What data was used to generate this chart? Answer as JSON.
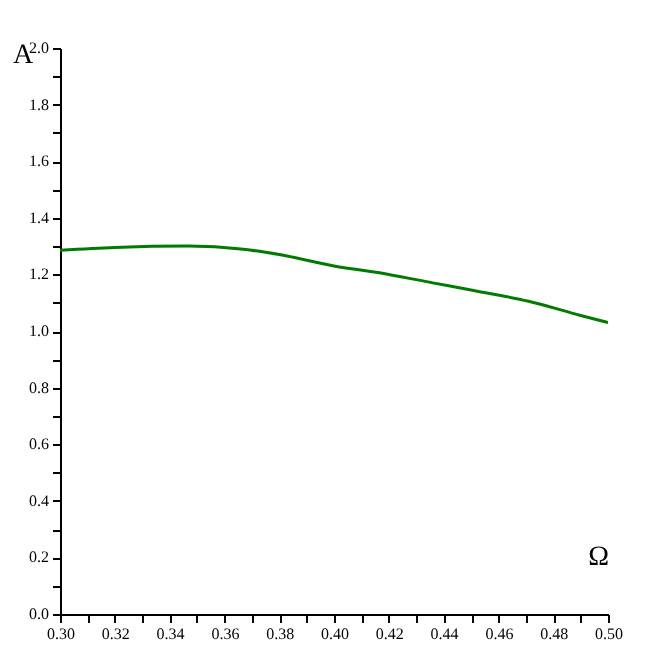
{
  "chart_data": {
    "type": "line",
    "xlabel": "Ω",
    "ylabel": "A",
    "x": [
      0.3,
      0.32,
      0.347,
      0.366,
      0.38,
      0.4,
      0.42,
      0.436,
      0.45,
      0.471,
      0.49,
      0.5
    ],
    "series": [
      {
        "color": "#007a00",
        "values": [
          1.285,
          1.295,
          1.3,
          1.29,
          1.27,
          1.23,
          1.2,
          1.17,
          1.145,
          1.105,
          1.055,
          1.03
        ]
      }
    ],
    "xlim": [
      0.3,
      0.5
    ],
    "ylim": [
      0,
      2.0
    ],
    "xticks": [
      {
        "value": 0.3,
        "label": "0.30"
      },
      {
        "value": 0.31,
        "label": null
      },
      {
        "value": 0.32,
        "label": "0.32"
      },
      {
        "value": 0.33,
        "label": null
      },
      {
        "value": 0.34,
        "label": "0.34"
      },
      {
        "value": 0.35,
        "label": null
      },
      {
        "value": 0.36,
        "label": "0.36"
      },
      {
        "value": 0.37,
        "label": null
      },
      {
        "value": 0.38,
        "label": "0.38"
      },
      {
        "value": 0.39,
        "label": null
      },
      {
        "value": 0.4,
        "label": "0.40"
      },
      {
        "value": 0.41,
        "label": null
      },
      {
        "value": 0.42,
        "label": "0.42"
      },
      {
        "value": 0.43,
        "label": null
      },
      {
        "value": 0.44,
        "label": "0.44"
      },
      {
        "value": 0.45,
        "label": null
      },
      {
        "value": 0.46,
        "label": "0.46"
      },
      {
        "value": 0.47,
        "label": null
      },
      {
        "value": 0.48,
        "label": "0.48"
      },
      {
        "value": 0.49,
        "label": null
      },
      {
        "value": 0.5,
        "label": "0.50"
      }
    ],
    "yticks": [
      {
        "value": 0,
        "label": "0.0"
      },
      {
        "value": 0.1,
        "label": null
      },
      {
        "value": 0.2,
        "label": "0.2"
      },
      {
        "value": 0.3,
        "label": null
      },
      {
        "value": 0.4,
        "label": "0.4"
      },
      {
        "value": 0.5,
        "label": null
      },
      {
        "value": 0.6,
        "label": "0.6"
      },
      {
        "value": 0.7,
        "label": null
      },
      {
        "value": 0.8,
        "label": "0.8"
      },
      {
        "value": 0.9,
        "label": null
      },
      {
        "value": 1.0,
        "label": "1.0"
      },
      {
        "value": 1.1,
        "label": null
      },
      {
        "value": 1.2,
        "label": "1.2"
      },
      {
        "value": 1.3,
        "label": null
      },
      {
        "value": 1.4,
        "label": "1.4"
      },
      {
        "value": 1.5,
        "label": null
      },
      {
        "value": 1.6,
        "label": "1.6"
      },
      {
        "value": 1.7,
        "label": null
      },
      {
        "value": 1.8,
        "label": "1.8"
      },
      {
        "value": 1.9,
        "label": null
      },
      {
        "value": 2.0,
        "label": "2.0"
      }
    ],
    "grid": false
  }
}
